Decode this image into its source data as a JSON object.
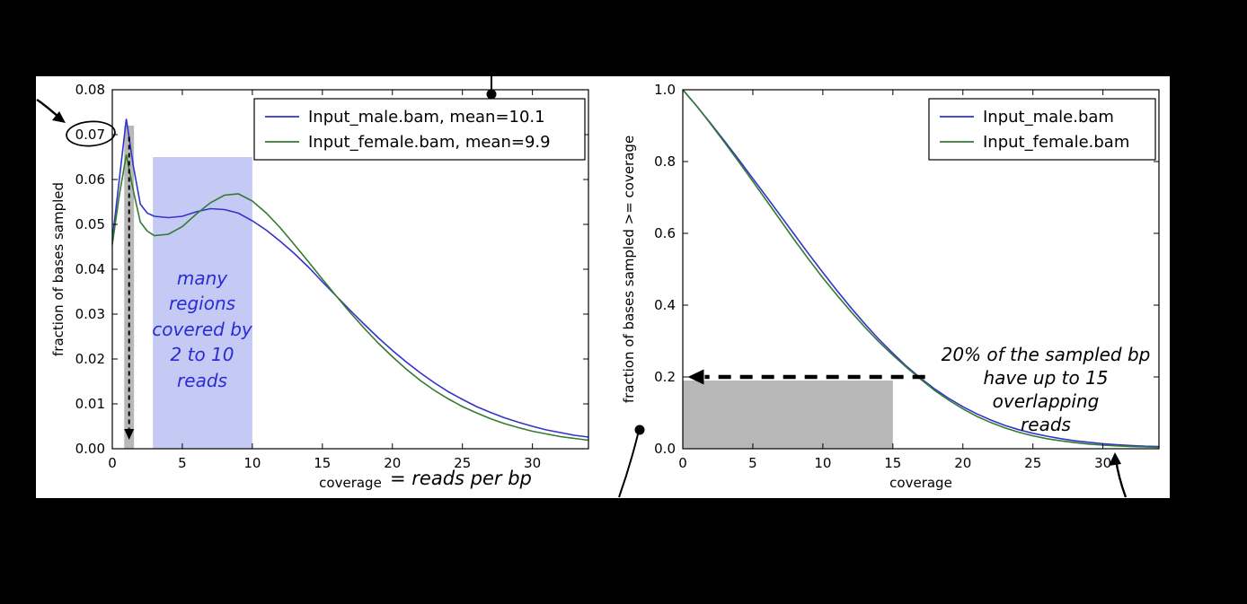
{
  "panel": {
    "background": "#ffffff"
  },
  "colors": {
    "male_line": "#3333cc",
    "female_line": "#337a33",
    "blue_shade": "rgba(125,137,230,0.45)",
    "gray_shade": "rgba(160,160,160,0.75)"
  },
  "chart_data": [
    {
      "id": "coverage-histogram",
      "type": "line",
      "title": "",
      "xlabel": "coverage",
      "ylabel": "fraction of bases sampled",
      "xlim": [
        0,
        34
      ],
      "ylim": [
        0,
        0.08
      ],
      "grid": false,
      "legend_position": "upper right",
      "xticks": [
        0,
        5,
        10,
        15,
        20,
        25,
        30
      ],
      "xtick_labels": [
        "0",
        "5",
        "10",
        "15",
        "20",
        "25",
        "30"
      ],
      "yticks": [
        0,
        0.01,
        0.02,
        0.03,
        0.04,
        0.05,
        0.06,
        0.07,
        0.08
      ],
      "ytick_labels": [
        "0.00",
        "0.01",
        "0.02",
        "0.03",
        "0.04",
        "0.05",
        "0.06",
        "0.07",
        "0.08"
      ],
      "series": [
        {
          "id": "male",
          "name": "Input_male.bam, mean=10.1",
          "color": "#3333cc",
          "x": [
            0,
            0.5,
            1,
            1.5,
            2,
            2.5,
            3,
            4,
            5,
            6,
            7,
            8,
            9,
            10,
            11,
            12,
            13,
            14,
            15,
            16,
            17,
            18,
            19,
            20,
            21,
            22,
            23,
            24,
            25,
            26,
            27,
            28,
            29,
            30,
            31,
            32,
            33,
            34
          ],
          "y": [
            0.0465,
            0.06,
            0.0735,
            0.063,
            0.0545,
            0.0525,
            0.0518,
            0.0515,
            0.0518,
            0.0528,
            0.0535,
            0.0533,
            0.0525,
            0.0508,
            0.0487,
            0.0462,
            0.0435,
            0.0405,
            0.0372,
            0.034,
            0.0308,
            0.0277,
            0.0247,
            0.0219,
            0.0193,
            0.0169,
            0.0147,
            0.0127,
            0.011,
            0.0094,
            0.0081,
            0.0069,
            0.0059,
            0.005,
            0.0042,
            0.0036,
            0.003,
            0.0026
          ]
        },
        {
          "id": "female",
          "name": "Input_female.bam, mean=9.9",
          "color": "#337a33",
          "x": [
            0,
            0.5,
            1,
            1.5,
            2,
            2.5,
            3,
            4,
            5,
            6,
            7,
            8,
            9,
            10,
            11,
            12,
            13,
            14,
            15,
            16,
            17,
            18,
            19,
            20,
            21,
            22,
            23,
            24,
            25,
            26,
            27,
            28,
            29,
            30,
            31,
            32,
            33,
            34
          ],
          "y": [
            0.0455,
            0.0565,
            0.0655,
            0.0575,
            0.0505,
            0.0485,
            0.0475,
            0.0478,
            0.0495,
            0.0523,
            0.0548,
            0.0565,
            0.0568,
            0.0552,
            0.0525,
            0.0492,
            0.0455,
            0.0417,
            0.0378,
            0.034,
            0.0303,
            0.0268,
            0.0235,
            0.0205,
            0.0177,
            0.0152,
            0.013,
            0.0111,
            0.0094,
            0.008,
            0.0067,
            0.0056,
            0.0047,
            0.0039,
            0.0033,
            0.0027,
            0.0023,
            0.0019
          ]
        }
      ],
      "regions": [
        {
          "x0": 0.85,
          "x1": 1.55,
          "y0": 0,
          "y1": 0.072,
          "color": "rgba(160,160,160,0.75)"
        },
        {
          "x0": 2.9,
          "x1": 10,
          "y0": 0,
          "y1": 0.065,
          "color": "rgba(125,137,230,0.45)"
        }
      ],
      "annotation_arrow": {
        "orient": "v",
        "x": 1.2,
        "from": 0.0695,
        "to": 0.002,
        "width": 2,
        "dash": "5,4"
      }
    },
    {
      "id": "coverage-ccdf",
      "type": "line",
      "title": "",
      "xlabel": "coverage",
      "ylabel": "fraction of bases sampled >= coverage",
      "xlim": [
        0,
        34
      ],
      "ylim": [
        0,
        1.0
      ],
      "grid": false,
      "legend_position": "upper right",
      "xticks": [
        0,
        5,
        10,
        15,
        20,
        25,
        30
      ],
      "xtick_labels": [
        "0",
        "5",
        "10",
        "15",
        "20",
        "25",
        "30"
      ],
      "yticks": [
        0,
        0.2,
        0.4,
        0.6,
        0.8,
        1.0
      ],
      "ytick_labels": [
        "0.0",
        "0.2",
        "0.4",
        "0.6",
        "0.8",
        "1.0"
      ],
      "series": [
        {
          "id": "male",
          "name": "Input_male.bam",
          "color": "#3333cc",
          "x": [
            0,
            1,
            2,
            3,
            4,
            5,
            6,
            7,
            8,
            9,
            10,
            11,
            12,
            13,
            14,
            15,
            16,
            17,
            18,
            19,
            20,
            21,
            22,
            23,
            24,
            25,
            26,
            27,
            28,
            29,
            30,
            31,
            32,
            33,
            34
          ],
          "y": [
            1.0,
            0.954,
            0.906,
            0.856,
            0.805,
            0.753,
            0.701,
            0.648,
            0.595,
            0.542,
            0.491,
            0.441,
            0.393,
            0.348,
            0.305,
            0.266,
            0.229,
            0.196,
            0.166,
            0.14,
            0.117,
            0.097,
            0.08,
            0.065,
            0.053,
            0.043,
            0.035,
            0.028,
            0.022,
            0.018,
            0.014,
            0.011,
            0.009,
            0.007,
            0.006
          ]
        },
        {
          "id": "female",
          "name": "Input_female.bam",
          "color": "#337a33",
          "x": [
            0,
            1,
            2,
            3,
            4,
            5,
            6,
            7,
            8,
            9,
            10,
            11,
            12,
            13,
            14,
            15,
            16,
            17,
            18,
            19,
            20,
            21,
            22,
            23,
            24,
            25,
            26,
            27,
            28,
            29,
            30,
            31,
            32,
            33,
            34
          ],
          "y": [
            1.0,
            0.9545,
            0.904,
            0.852,
            0.799,
            0.745,
            0.69,
            0.635,
            0.58,
            0.527,
            0.476,
            0.428,
            0.382,
            0.339,
            0.298,
            0.261,
            0.226,
            0.193,
            0.162,
            0.135,
            0.111,
            0.09,
            0.073,
            0.058,
            0.046,
            0.036,
            0.028,
            0.022,
            0.017,
            0.013,
            0.01,
            0.008,
            0.006,
            0.005,
            0.004
          ]
        }
      ],
      "regions": [
        {
          "x0": 0,
          "x1": 15,
          "y0": 0,
          "y1": 0.19,
          "color": "rgba(170,170,170,0.85)"
        }
      ],
      "annotation_arrow": {
        "orient": "h",
        "y": 0.2,
        "from": 17.3,
        "to": 0.8,
        "width": 4.5,
        "dash": "14,10"
      }
    }
  ],
  "annotations": {
    "many_regions": "many\nregions\ncovered by\n2 to 10\nreads",
    "reads_per_bp": "= reads per bp",
    "twenty_percent": "20% of the sampled bp\nhave up to 15 overlapping\nreads"
  }
}
